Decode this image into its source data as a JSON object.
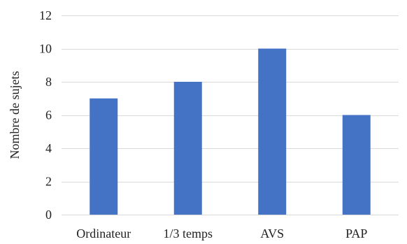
{
  "chart_data": {
    "type": "bar",
    "categories": [
      "Ordinateur",
      "1/3 temps",
      "AVS",
      "PAP"
    ],
    "values": [
      7,
      8,
      10,
      6
    ],
    "title": "",
    "xlabel": "",
    "ylabel": "Nombre de sujets",
    "ylim": [
      0,
      12
    ],
    "yticks": [
      0,
      2,
      4,
      6,
      8,
      10,
      12
    ],
    "grid": true,
    "legend": "none",
    "colors": {
      "bar": "#4472C4",
      "grid": "#D9D9D9",
      "text": "#222222"
    }
  }
}
